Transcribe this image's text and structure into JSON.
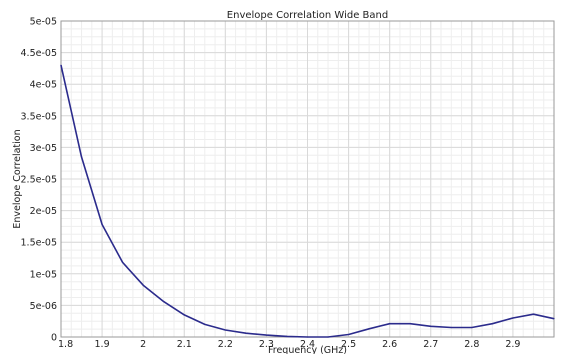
{
  "chart_data": {
    "type": "line",
    "title": "Envelope Correlation Wide Band",
    "xlabel": "Frequency (GHz)",
    "ylabel": "Envelope Correlation",
    "xlim": [
      1.8,
      3.0
    ],
    "ylim": [
      0,
      5e-05
    ],
    "grid": true,
    "x_ticks": [
      1.8,
      1.9,
      2.0,
      2.1,
      2.2,
      2.3,
      2.4,
      2.5,
      2.6,
      2.7,
      2.8,
      2.9
    ],
    "x_tick_labels": [
      "1.8",
      "1.9",
      "2",
      "2.1",
      "2.2",
      "2.3",
      "2.4",
      "2.5",
      "2.6",
      "2.7",
      "2.8",
      "2.9"
    ],
    "y_ticks": [
      0,
      5e-06,
      1e-05,
      1.5e-05,
      2e-05,
      2.5e-05,
      3e-05,
      3.5e-05,
      4e-05,
      4.5e-05,
      5e-05
    ],
    "y_tick_labels": [
      "0",
      "5e-06",
      "1e-05",
      "1.5e-05",
      "2e-05",
      "2.5e-05",
      "3e-05",
      "3.5e-05",
      "4e-05",
      "4.5e-05",
      "5e-05"
    ],
    "series": [
      {
        "color": "#2b2b8c",
        "x": [
          1.8,
          1.85,
          1.9,
          1.95,
          2.0,
          2.05,
          2.1,
          2.15,
          2.2,
          2.25,
          2.3,
          2.35,
          2.4,
          2.45,
          2.5,
          2.55,
          2.6,
          2.65,
          2.7,
          2.75,
          2.8,
          2.85,
          2.9,
          2.95,
          3.0
        ],
        "y": [
          4.3e-05,
          2.85e-05,
          1.78e-05,
          1.18e-05,
          8.2e-06,
          5.6e-06,
          3.5e-06,
          2e-06,
          1.1e-06,
          6e-07,
          3e-07,
          1e-07,
          0,
          0,
          4e-07,
          1.3e-06,
          2.1e-06,
          2.1e-06,
          1.7e-06,
          1.5e-06,
          1.5e-06,
          2.1e-06,
          3e-06,
          3.6e-06,
          2.9e-06
        ]
      }
    ]
  }
}
